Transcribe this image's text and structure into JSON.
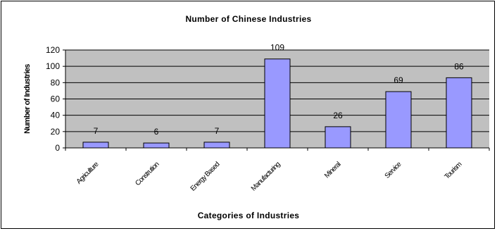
{
  "chart_data": {
    "type": "bar",
    "title": "Number of Chinese Industries",
    "xlabel": "Categories of Industries",
    "ylabel": "Number of Industries",
    "categories": [
      "Agriculture",
      "Constrution",
      "Energy Based",
      "Manufacturing",
      "Mineral",
      "Service",
      "Tourism"
    ],
    "values": [
      7,
      6,
      7,
      109,
      26,
      69,
      86
    ],
    "data_labels": [
      "7",
      "6",
      "7",
      "109",
      "26",
      "69",
      "86"
    ],
    "ylim": [
      0,
      120
    ],
    "yticks": [
      "0",
      "20",
      "40",
      "60",
      "80",
      "100",
      "120"
    ],
    "grid": true,
    "legend": "none",
    "colors": {
      "bar_fill": "#9999ff",
      "bar_stroke": "#000000",
      "plot_background": "#c0c0c0",
      "gridline": "#000000"
    }
  }
}
